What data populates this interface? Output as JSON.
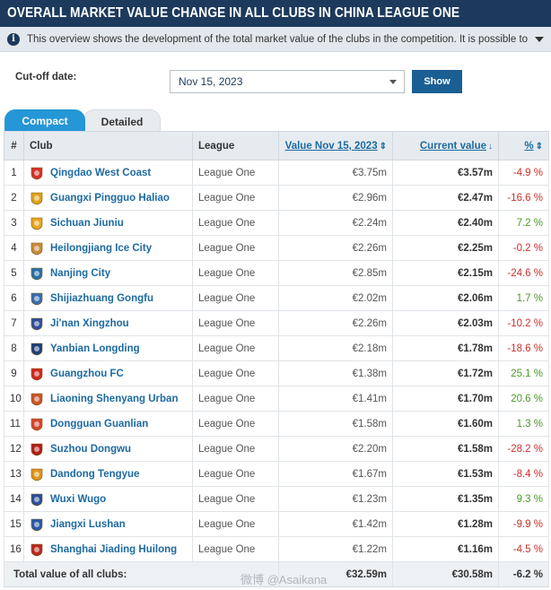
{
  "header": {
    "title": "OVERALL MARKET VALUE CHANGE IN ALL CLUBS IN CHINA LEAGUE ONE"
  },
  "info": {
    "text": "This overview shows the development of the total market value of the clubs in the competition. It is possible to select a cut-off..."
  },
  "filter": {
    "label": "Cut-off date:",
    "selected": "Nov 15, 2023",
    "button": "Show"
  },
  "tabs": [
    {
      "label": "Compact",
      "active": true
    },
    {
      "label": "Detailed",
      "active": false
    }
  ],
  "table": {
    "headers": {
      "rank": "#",
      "club": "Club",
      "league": "League",
      "value": "Value Nov 15, 2023",
      "current": "Current value",
      "pct": "%"
    },
    "rows": [
      {
        "rank": "1",
        "club": "Qingdao West Coast",
        "league": "League One",
        "value": "€3.75m",
        "current": "€3.57m",
        "pct": "-4.9 %",
        "trend": "neg",
        "crest_color": "#d4322c"
      },
      {
        "rank": "2",
        "club": "Guangxi Pingguo Haliao",
        "league": "League One",
        "value": "€2.96m",
        "current": "€2.47m",
        "pct": "-16.6 %",
        "trend": "neg",
        "crest_color": "#e0a21a"
      },
      {
        "rank": "3",
        "club": "Sichuan Jiuniu",
        "league": "League One",
        "value": "€2.24m",
        "current": "€2.40m",
        "pct": "7.2 %",
        "trend": "pos",
        "crest_color": "#e8a41b"
      },
      {
        "rank": "4",
        "club": "Heilongjiang Ice City",
        "league": "League One",
        "value": "€2.26m",
        "current": "€2.25m",
        "pct": "-0.2 %",
        "trend": "neg",
        "crest_color": "#c98a3a"
      },
      {
        "rank": "5",
        "club": "Nanjing City",
        "league": "League One",
        "value": "€2.85m",
        "current": "€2.15m",
        "pct": "-24.6 %",
        "trend": "neg",
        "crest_color": "#2a6fa8"
      },
      {
        "rank": "6",
        "club": "Shijiazhuang Gongfu",
        "league": "League One",
        "value": "€2.02m",
        "current": "€2.06m",
        "pct": "1.7 %",
        "trend": "pos",
        "crest_color": "#3a6db0"
      },
      {
        "rank": "7",
        "club": "Ji'nan Xingzhou",
        "league": "League One",
        "value": "€2.26m",
        "current": "€2.03m",
        "pct": "-10.2 %",
        "trend": "neg",
        "crest_color": "#2f4f9a"
      },
      {
        "rank": "8",
        "club": "Yanbian Longding",
        "league": "League One",
        "value": "€2.18m",
        "current": "€1.78m",
        "pct": "-18.6 %",
        "trend": "neg",
        "crest_color": "#1f3f7a"
      },
      {
        "rank": "9",
        "club": "Guangzhou FC",
        "league": "League One",
        "value": "€1.38m",
        "current": "€1.72m",
        "pct": "25.1 %",
        "trend": "pos",
        "crest_color": "#d0281f"
      },
      {
        "rank": "10",
        "club": "Liaoning Shenyang Urban",
        "league": "League One",
        "value": "€1.41m",
        "current": "€1.70m",
        "pct": "20.6 %",
        "trend": "pos",
        "crest_color": "#c8542a"
      },
      {
        "rank": "11",
        "club": "Dongguan Guanlian",
        "league": "League One",
        "value": "€1.58m",
        "current": "€1.60m",
        "pct": "1.3 %",
        "trend": "pos",
        "crest_color": "#d6452c"
      },
      {
        "rank": "12",
        "club": "Suzhou Dongwu",
        "league": "League One",
        "value": "€2.20m",
        "current": "€1.58m",
        "pct": "-28.2 %",
        "trend": "neg",
        "crest_color": "#b0201c"
      },
      {
        "rank": "13",
        "club": "Dandong Tengyue",
        "league": "League One",
        "value": "€1.67m",
        "current": "€1.53m",
        "pct": "-8.4 %",
        "trend": "neg",
        "crest_color": "#e0931c"
      },
      {
        "rank": "14",
        "club": "Wuxi Wugo",
        "league": "League One",
        "value": "€1.23m",
        "current": "€1.35m",
        "pct": "9.3 %",
        "trend": "pos",
        "crest_color": "#2a4f9a"
      },
      {
        "rank": "15",
        "club": "Jiangxi Lushan",
        "league": "League One",
        "value": "€1.42m",
        "current": "€1.28m",
        "pct": "-9.9 %",
        "trend": "neg",
        "crest_color": "#2a5aa8"
      },
      {
        "rank": "16",
        "club": "Shanghai Jiading Huilong",
        "league": "League One",
        "value": "€1.22m",
        "current": "€1.16m",
        "pct": "-4.5 %",
        "trend": "neg",
        "crest_color": "#b8281f"
      }
    ],
    "total": {
      "label": "Total value of all clubs:",
      "value": "€32.59m",
      "current": "€30.58m",
      "pct": "-6.2 %"
    }
  },
  "watermark": "微博 @Asaikana",
  "colors": {
    "header_bg": "#1d3a5c",
    "link": "#1d6aa1",
    "tab_active": "#2596d6",
    "button": "#1a5f93",
    "positive": "#4a9a2a",
    "negative": "#c9302c"
  }
}
